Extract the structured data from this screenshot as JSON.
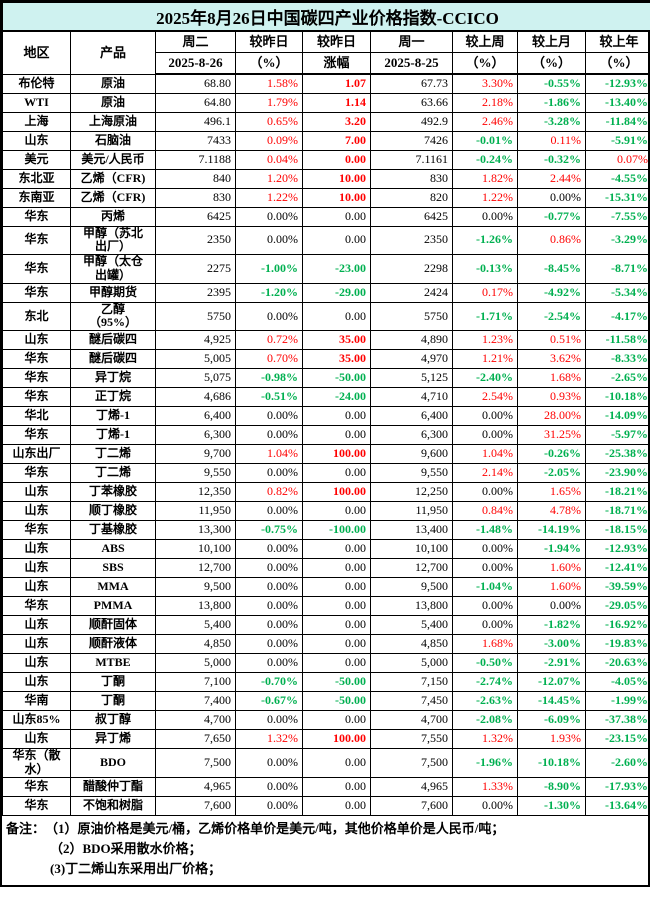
{
  "title": "2025年8月26日中国碳四产业价格指数-CCICO",
  "colors": {
    "title_bg": "#CFF2F0",
    "up_red": "#FF0000",
    "down_green": "#00B050",
    "text": "#000000",
    "grid": "#000000"
  },
  "chart_data": {
    "type": "table",
    "header": {
      "region": "地区",
      "product": "产品",
      "columns": [
        {
          "l1": "周二",
          "l2": "2025-8-26"
        },
        {
          "l1": "较昨日",
          "l2": "（%）"
        },
        {
          "l1": "较昨日",
          "l2": "涨幅"
        },
        {
          "l1": "周一",
          "l2": "2025-8-25"
        },
        {
          "l1": "较上周",
          "l2": "（%）"
        },
        {
          "l1": "较上月",
          "l2": "（%）"
        },
        {
          "l1": "较上年",
          "l2": "（%）"
        }
      ]
    },
    "color_legend": "per-cell color codes: k=black, r=red(up), g=green(down); order matches values[]",
    "rows": [
      {
        "region": "布伦特",
        "product": "原油",
        "values": [
          "68.80",
          "1.58%",
          "1.07",
          "67.73",
          "3.30%",
          "-0.55%",
          "-12.93%"
        ],
        "colors": "krrkrgg"
      },
      {
        "region": "WTI",
        "product": "原油",
        "values": [
          "64.80",
          "1.79%",
          "1.14",
          "63.66",
          "2.18%",
          "-1.86%",
          "-13.40%"
        ],
        "colors": "krrkrgg"
      },
      {
        "region": "上海",
        "product": "上海原油",
        "values": [
          "496.1",
          "0.65%",
          "3.20",
          "492.9",
          "2.46%",
          "-3.28%",
          "-11.84%"
        ],
        "colors": "krrkrgg"
      },
      {
        "region": "山东",
        "product": "石脑油",
        "values": [
          "7433",
          "0.09%",
          "7.00",
          "7426",
          "-0.01%",
          "0.11%",
          "-5.91%"
        ],
        "colors": "krrkgrg"
      },
      {
        "region": "美元",
        "product": "美元/人民币",
        "values": [
          "7.1188",
          "0.04%",
          "0.00",
          "7.1161",
          "-0.24%",
          "-0.32%",
          "0.07%"
        ],
        "colors": "krrkggr"
      },
      {
        "region": "东北亚",
        "product": "乙烯（CFR)",
        "values": [
          "840",
          "1.20%",
          "10.00",
          "830",
          "1.82%",
          "2.44%",
          "-4.55%"
        ],
        "colors": "krrkrrg"
      },
      {
        "region": "东南亚",
        "product": "乙烯（CFR)",
        "values": [
          "830",
          "1.22%",
          "10.00",
          "820",
          "1.22%",
          "0.00%",
          "-15.31%"
        ],
        "colors": "krrkrkg"
      },
      {
        "region": "华东",
        "product": "丙烯",
        "values": [
          "6425",
          "0.00%",
          "0.00",
          "6425",
          "0.00%",
          "-0.77%",
          "-7.55%"
        ],
        "colors": "kkkkkgg"
      },
      {
        "region": "华东",
        "product": "甲醇（苏北\n出厂）",
        "values": [
          "2350",
          "0.00%",
          "0.00",
          "2350",
          "-1.26%",
          "0.86%",
          "-3.29%"
        ],
        "colors": "kkkkgrg"
      },
      {
        "region": "华东",
        "product": "甲醇（太仓\n出罐）",
        "values": [
          "2275",
          "-1.00%",
          "-23.00",
          "2298",
          "-0.13%",
          "-8.45%",
          "-8.71%"
        ],
        "colors": "kggkggg"
      },
      {
        "region": "华东",
        "product": "甲醇期货",
        "values": [
          "2395",
          "-1.20%",
          "-29.00",
          "2424",
          "0.17%",
          "-4.92%",
          "-5.34%"
        ],
        "colors": "kggkrgg"
      },
      {
        "region": "东北",
        "product": "乙醇\n（95%）",
        "values": [
          "5750",
          "0.00%",
          "0.00",
          "5750",
          "-1.71%",
          "-2.54%",
          "-4.17%"
        ],
        "colors": "kkkkggg"
      },
      {
        "region": "山东",
        "product": "醚后碳四",
        "values": [
          "4,925",
          "0.72%",
          "35.00",
          "4,890",
          "1.23%",
          "0.51%",
          "-11.58%"
        ],
        "colors": "krrkrrg"
      },
      {
        "region": "华东",
        "product": "醚后碳四",
        "values": [
          "5,005",
          "0.70%",
          "35.00",
          "4,970",
          "1.21%",
          "3.62%",
          "-8.33%"
        ],
        "colors": "krrkrrg"
      },
      {
        "region": "华东",
        "product": "异丁烷",
        "values": [
          "5,075",
          "-0.98%",
          "-50.00",
          "5,125",
          "-2.40%",
          "1.68%",
          "-2.65%"
        ],
        "colors": "kggkgrg"
      },
      {
        "region": "华东",
        "product": "正丁烷",
        "values": [
          "4,686",
          "-0.51%",
          "-24.00",
          "4,710",
          "2.54%",
          "0.93%",
          "-10.18%"
        ],
        "colors": "kggkrrg"
      },
      {
        "region": "华北",
        "product": "丁烯-1",
        "values": [
          "6,400",
          "0.00%",
          "0.00",
          "6,400",
          "0.00%",
          "28.00%",
          "-14.09%"
        ],
        "colors": "kkkkkrg"
      },
      {
        "region": "华东",
        "product": "丁烯-1",
        "values": [
          "6,300",
          "0.00%",
          "0.00",
          "6,300",
          "0.00%",
          "31.25%",
          "-5.97%"
        ],
        "colors": "kkkkkrg"
      },
      {
        "region": "山东出厂",
        "product": "丁二烯",
        "values": [
          "9,700",
          "1.04%",
          "100.00",
          "9,600",
          "1.04%",
          "-0.26%",
          "-25.38%"
        ],
        "colors": "krrkrgg"
      },
      {
        "region": "华东",
        "product": "丁二烯",
        "values": [
          "9,550",
          "0.00%",
          "0.00",
          "9,550",
          "2.14%",
          "-2.05%",
          "-23.90%"
        ],
        "colors": "kkkkrgg"
      },
      {
        "region": "山东",
        "product": "丁苯橡胶",
        "values": [
          "12,350",
          "0.82%",
          "100.00",
          "12,250",
          "0.00%",
          "1.65%",
          "-18.21%"
        ],
        "colors": "krrkkrg"
      },
      {
        "region": "山东",
        "product": "顺丁橡胶",
        "values": [
          "11,950",
          "0.00%",
          "0.00",
          "11,950",
          "0.84%",
          "4.78%",
          "-18.71%"
        ],
        "colors": "kkkkrrg"
      },
      {
        "region": "华东",
        "product": "丁基橡胶",
        "values": [
          "13,300",
          "-0.75%",
          "-100.00",
          "13,400",
          "-1.48%",
          "-14.19%",
          "-18.15%"
        ],
        "colors": "kggkggg"
      },
      {
        "region": "山东",
        "product": "ABS",
        "values": [
          "10,100",
          "0.00%",
          "0.00",
          "10,100",
          "0.00%",
          "-1.94%",
          "-12.93%"
        ],
        "colors": "kkkkkgg"
      },
      {
        "region": "山东",
        "product": "SBS",
        "values": [
          "12,700",
          "0.00%",
          "0.00",
          "12,700",
          "0.00%",
          "1.60%",
          "-12.41%"
        ],
        "colors": "kkkkkrg"
      },
      {
        "region": "山东",
        "product": "MMA",
        "values": [
          "9,500",
          "0.00%",
          "0.00",
          "9,500",
          "-1.04%",
          "1.60%",
          "-39.59%"
        ],
        "colors": "kkkkgrg"
      },
      {
        "region": "华东",
        "product": "PMMA",
        "values": [
          "13,800",
          "0.00%",
          "0.00",
          "13,800",
          "0.00%",
          "0.00%",
          "-29.05%"
        ],
        "colors": "kkkkkkg"
      },
      {
        "region": "山东",
        "product": "顺酐固体",
        "values": [
          "5,400",
          "0.00%",
          "0.00",
          "5,400",
          "0.00%",
          "-1.82%",
          "-16.92%"
        ],
        "colors": "kkkkkgg"
      },
      {
        "region": "山东",
        "product": "顺酐液体",
        "values": [
          "4,850",
          "0.00%",
          "0.00",
          "4,850",
          "1.68%",
          "-3.00%",
          "-19.83%"
        ],
        "colors": "kkkkrgg"
      },
      {
        "region": "山东",
        "product": "MTBE",
        "values": [
          "5,000",
          "0.00%",
          "0.00",
          "5,000",
          "-0.50%",
          "-2.91%",
          "-20.63%"
        ],
        "colors": "kkkkggg"
      },
      {
        "region": "山东",
        "product": "丁酮",
        "values": [
          "7,100",
          "-0.70%",
          "-50.00",
          "7,150",
          "-2.74%",
          "-12.07%",
          "-4.05%"
        ],
        "colors": "kggkggg"
      },
      {
        "region": "华南",
        "product": "丁酮",
        "values": [
          "7,400",
          "-0.67%",
          "-50.00",
          "7,450",
          "-2.63%",
          "-14.45%",
          "-1.99%"
        ],
        "colors": "kggkggg"
      },
      {
        "region": "山东85%",
        "product": "叔丁醇",
        "values": [
          "4,700",
          "0.00%",
          "0.00",
          "4,700",
          "-2.08%",
          "-6.09%",
          "-37.38%"
        ],
        "colors": "kkkkggg"
      },
      {
        "region": "山东",
        "product": "异丁烯",
        "values": [
          "7,650",
          "1.32%",
          "100.00",
          "7,550",
          "1.32%",
          "1.93%",
          "-23.15%"
        ],
        "colors": "krrkrrg"
      },
      {
        "region": "华东（散\n水）",
        "product": "BDO",
        "values": [
          "7,500",
          "0.00%",
          "0.00",
          "7,500",
          "-1.96%",
          "-10.18%",
          "-2.60%"
        ],
        "colors": "kkkkggg"
      },
      {
        "region": "华东",
        "product": "醋酸仲丁酯",
        "values": [
          "4,965",
          "0.00%",
          "0.00",
          "4,965",
          "1.33%",
          "-8.90%",
          "-17.93%"
        ],
        "colors": "kkkkrgg"
      },
      {
        "region": "华东",
        "product": "不饱和树脂",
        "values": [
          "7,600",
          "0.00%",
          "0.00",
          "7,600",
          "0.00%",
          "-1.30%",
          "-13.64%"
        ],
        "colors": "kkkkkgg"
      }
    ]
  },
  "notes": {
    "label": "备注：",
    "items": [
      "（1）原油价格是美元/桶，乙烯价格单价是美元/吨，其他价格单价是人民币/吨；",
      "（2）BDO采用散水价格；",
      "(3)丁二烯山东采用出厂价格；"
    ]
  }
}
